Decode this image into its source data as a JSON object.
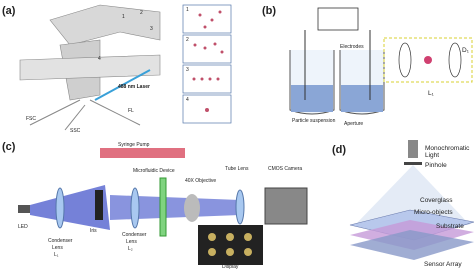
{
  "panels": [
    {
      "label": "(a)",
      "texts": [
        "1",
        "2",
        "3",
        "4",
        "488 nm Laser",
        "FSC",
        "SSC",
        "FL"
      ],
      "insets": [
        "1",
        "2",
        "3",
        "4"
      ]
    },
    {
      "label": "(b)",
      "texts": [
        "Electrodes",
        "Particle suspension",
        "Aperture",
        "D₁",
        "L₁"
      ]
    },
    {
      "label": "(c)",
      "texts": [
        "Syringe Pump",
        "Microfluidic Device",
        "40X Objective",
        "Tube Lens",
        "CMOS Camera",
        "LED",
        "Iris",
        "Display"
      ],
      "condenser1": [
        "Condenser",
        "Lens",
        "L₁"
      ],
      "condenser2": [
        "Condenser",
        "Lens",
        "L₂"
      ]
    },
    {
      "label": "(d)",
      "texts": [
        "Monochromatic",
        "Light",
        "Pinhole",
        "Coverglass",
        "Micro-objects",
        "Substrate",
        "Sensor Array"
      ]
    }
  ]
}
